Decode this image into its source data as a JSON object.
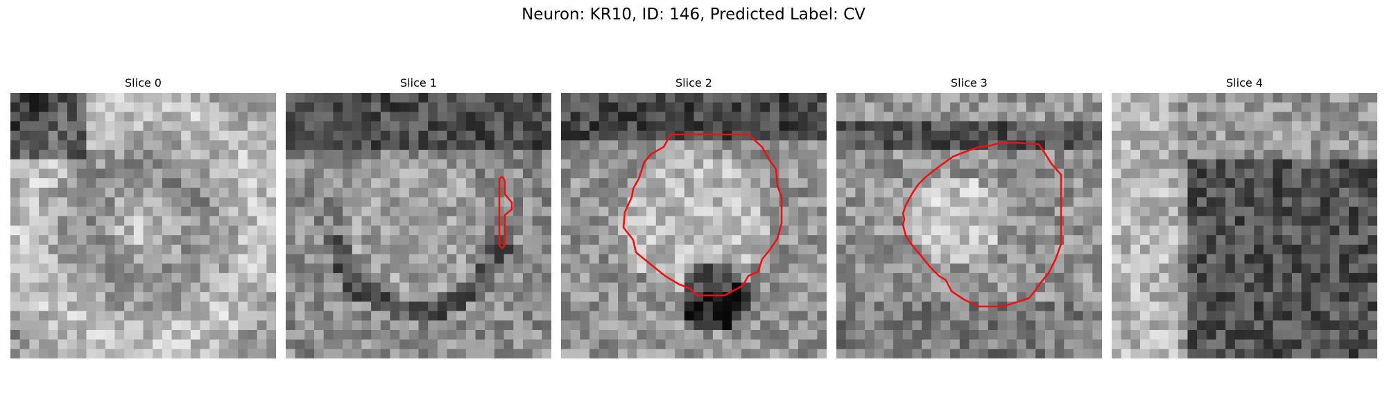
{
  "figure": {
    "title": "Neuron: KR10, ID: 146, Predicted Label: CV"
  },
  "panels": [
    {
      "title": "Slice 0",
      "seed": 11,
      "contour": false,
      "pattern": "ring"
    },
    {
      "title": "Slice 1",
      "seed": 23,
      "contour": true,
      "pattern": "ring-dark-top"
    },
    {
      "title": "Slice 2",
      "seed": 37,
      "contour": true,
      "pattern": "bright-center"
    },
    {
      "title": "Slice 3",
      "seed": 51,
      "contour": true,
      "pattern": "bright-center-small"
    },
    {
      "title": "Slice 4",
      "seed": 67,
      "contour": false,
      "pattern": "dark-right"
    }
  ],
  "colors": {
    "contour": "#ee1111"
  }
}
